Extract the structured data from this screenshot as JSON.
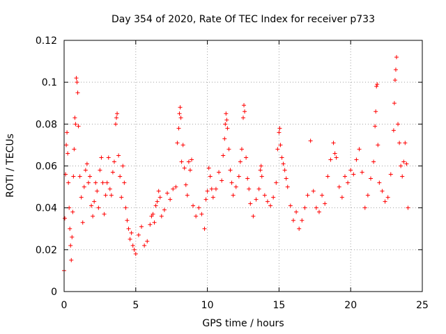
{
  "chart_data": {
    "type": "scatter",
    "title": "Day 354 of 2020, Rate Of TEC Index for receiver p733",
    "xlabel": "GPS time / hours",
    "ylabel": "ROTI / TECUs",
    "xlim": [
      0,
      25
    ],
    "ylim": [
      0,
      0.12
    ],
    "x_ticks": [
      0,
      5,
      10,
      15,
      20,
      25
    ],
    "y_ticks": [
      0,
      0.02,
      0.04,
      0.06,
      0.08,
      0.1,
      0.12
    ],
    "x_tick_labels": [
      "0",
      "5",
      "10",
      "15",
      "20",
      "25"
    ],
    "y_tick_labels": [
      "0",
      "0.02",
      "0.04",
      "0.06",
      "0.08",
      "0.1",
      "0.12"
    ],
    "grid": true,
    "marker": "plus",
    "color": "#ff0000",
    "series": [
      {
        "points": [
          [
            0.0,
            0.01
          ],
          [
            0.05,
            0.035
          ],
          [
            0.1,
            0.056
          ],
          [
            0.15,
            0.07
          ],
          [
            0.2,
            0.076
          ],
          [
            0.25,
            0.066
          ],
          [
            0.3,
            0.052
          ],
          [
            0.35,
            0.04
          ],
          [
            0.4,
            0.03
          ],
          [
            0.45,
            0.022
          ],
          [
            0.5,
            0.015
          ],
          [
            0.55,
            0.026
          ],
          [
            0.6,
            0.038
          ],
          [
            0.65,
            0.055
          ],
          [
            0.7,
            0.068
          ],
          [
            0.75,
            0.083
          ],
          [
            0.8,
            0.08
          ],
          [
            0.85,
            0.102
          ],
          [
            0.9,
            0.1
          ],
          [
            0.95,
            0.095
          ],
          [
            1.0,
            0.079
          ],
          [
            1.1,
            0.055
          ],
          [
            1.2,
            0.045
          ],
          [
            1.3,
            0.033
          ],
          [
            1.4,
            0.05
          ],
          [
            1.5,
            0.058
          ],
          [
            1.6,
            0.061
          ],
          [
            1.7,
            0.052
          ],
          [
            1.8,
            0.055
          ],
          [
            1.9,
            0.041
          ],
          [
            2.0,
            0.036
          ],
          [
            2.1,
            0.043
          ],
          [
            2.2,
            0.052
          ],
          [
            2.3,
            0.048
          ],
          [
            2.4,
            0.04
          ],
          [
            2.5,
            0.058
          ],
          [
            2.6,
            0.064
          ],
          [
            2.7,
            0.052
          ],
          [
            2.8,
            0.037
          ],
          [
            2.9,
            0.046
          ],
          [
            3.0,
            0.052
          ],
          [
            3.1,
            0.064
          ],
          [
            3.2,
            0.049
          ],
          [
            3.3,
            0.046
          ],
          [
            3.4,
            0.057
          ],
          [
            3.5,
            0.062
          ],
          [
            3.6,
            0.08
          ],
          [
            3.65,
            0.083
          ],
          [
            3.7,
            0.085
          ],
          [
            3.8,
            0.065
          ],
          [
            3.9,
            0.055
          ],
          [
            4.0,
            0.045
          ],
          [
            4.1,
            0.06
          ],
          [
            4.2,
            0.052
          ],
          [
            4.3,
            0.04
          ],
          [
            4.4,
            0.034
          ],
          [
            4.5,
            0.03
          ],
          [
            4.6,
            0.025
          ],
          [
            4.7,
            0.028
          ],
          [
            4.8,
            0.022
          ],
          [
            4.9,
            0.02
          ],
          [
            5.0,
            0.018
          ],
          [
            5.2,
            0.027
          ],
          [
            5.4,
            0.031
          ],
          [
            5.6,
            0.022
          ],
          [
            5.8,
            0.024
          ],
          [
            6.0,
            0.032
          ],
          [
            6.1,
            0.036
          ],
          [
            6.2,
            0.037
          ],
          [
            6.3,
            0.033
          ],
          [
            6.4,
            0.041
          ],
          [
            6.5,
            0.043
          ],
          [
            6.6,
            0.048
          ],
          [
            6.7,
            0.045
          ],
          [
            6.8,
            0.036
          ],
          [
            7.0,
            0.039
          ],
          [
            7.2,
            0.047
          ],
          [
            7.4,
            0.044
          ],
          [
            7.6,
            0.049
          ],
          [
            7.8,
            0.05
          ],
          [
            7.9,
            0.071
          ],
          [
            8.0,
            0.078
          ],
          [
            8.05,
            0.085
          ],
          [
            8.1,
            0.088
          ],
          [
            8.15,
            0.083
          ],
          [
            8.2,
            0.062
          ],
          [
            8.3,
            0.07
          ],
          [
            8.4,
            0.059
          ],
          [
            8.5,
            0.051
          ],
          [
            8.6,
            0.046
          ],
          [
            8.7,
            0.062
          ],
          [
            8.8,
            0.058
          ],
          [
            8.9,
            0.063
          ],
          [
            9.0,
            0.041
          ],
          [
            9.2,
            0.036
          ],
          [
            9.4,
            0.04
          ],
          [
            9.6,
            0.037
          ],
          [
            9.8,
            0.03
          ],
          [
            9.9,
            0.044
          ],
          [
            10.0,
            0.048
          ],
          [
            10.1,
            0.059
          ],
          [
            10.2,
            0.055
          ],
          [
            10.3,
            0.049
          ],
          [
            10.4,
            0.045
          ],
          [
            10.6,
            0.049
          ],
          [
            10.8,
            0.057
          ],
          [
            11.0,
            0.053
          ],
          [
            11.1,
            0.065
          ],
          [
            11.2,
            0.073
          ],
          [
            11.25,
            0.08
          ],
          [
            11.3,
            0.085
          ],
          [
            11.35,
            0.082
          ],
          [
            11.4,
            0.078
          ],
          [
            11.5,
            0.068
          ],
          [
            11.6,
            0.058
          ],
          [
            11.7,
            0.052
          ],
          [
            11.8,
            0.046
          ],
          [
            12.0,
            0.05
          ],
          [
            12.2,
            0.055
          ],
          [
            12.3,
            0.062
          ],
          [
            12.4,
            0.068
          ],
          [
            12.5,
            0.083
          ],
          [
            12.55,
            0.089
          ],
          [
            12.6,
            0.086
          ],
          [
            12.7,
            0.064
          ],
          [
            12.8,
            0.054
          ],
          [
            12.9,
            0.049
          ],
          [
            13.0,
            0.042
          ],
          [
            13.2,
            0.036
          ],
          [
            13.4,
            0.044
          ],
          [
            13.6,
            0.049
          ],
          [
            13.7,
            0.058
          ],
          [
            13.75,
            0.06
          ],
          [
            13.8,
            0.055
          ],
          [
            14.0,
            0.046
          ],
          [
            14.2,
            0.043
          ],
          [
            14.4,
            0.041
          ],
          [
            14.6,
            0.045
          ],
          [
            14.8,
            0.052
          ],
          [
            14.9,
            0.068
          ],
          [
            15.0,
            0.076
          ],
          [
            15.05,
            0.078
          ],
          [
            15.1,
            0.07
          ],
          [
            15.2,
            0.064
          ],
          [
            15.3,
            0.061
          ],
          [
            15.4,
            0.058
          ],
          [
            15.5,
            0.054
          ],
          [
            15.6,
            0.05
          ],
          [
            15.8,
            0.041
          ],
          [
            16.0,
            0.034
          ],
          [
            16.2,
            0.038
          ],
          [
            16.4,
            0.03
          ],
          [
            16.6,
            0.034
          ],
          [
            16.8,
            0.04
          ],
          [
            17.0,
            0.046
          ],
          [
            17.2,
            0.072
          ],
          [
            17.4,
            0.048
          ],
          [
            17.6,
            0.04
          ],
          [
            17.8,
            0.038
          ],
          [
            18.0,
            0.046
          ],
          [
            18.2,
            0.042
          ],
          [
            18.4,
            0.055
          ],
          [
            18.6,
            0.063
          ],
          [
            18.8,
            0.071
          ],
          [
            18.9,
            0.066
          ],
          [
            19.0,
            0.064
          ],
          [
            19.2,
            0.05
          ],
          [
            19.4,
            0.045
          ],
          [
            19.6,
            0.055
          ],
          [
            19.8,
            0.052
          ],
          [
            20.0,
            0.058
          ],
          [
            20.2,
            0.056
          ],
          [
            20.4,
            0.063
          ],
          [
            20.6,
            0.068
          ],
          [
            20.8,
            0.057
          ],
          [
            21.0,
            0.04
          ],
          [
            21.2,
            0.046
          ],
          [
            21.4,
            0.054
          ],
          [
            21.6,
            0.062
          ],
          [
            21.7,
            0.079
          ],
          [
            21.75,
            0.086
          ],
          [
            21.8,
            0.098
          ],
          [
            21.85,
            0.099
          ],
          [
            21.9,
            0.07
          ],
          [
            22.0,
            0.052
          ],
          [
            22.2,
            0.048
          ],
          [
            22.4,
            0.043
          ],
          [
            22.6,
            0.045
          ],
          [
            22.8,
            0.056
          ],
          [
            23.0,
            0.077
          ],
          [
            23.05,
            0.09
          ],
          [
            23.1,
            0.101
          ],
          [
            23.15,
            0.106
          ],
          [
            23.2,
            0.112
          ],
          [
            23.3,
            0.08
          ],
          [
            23.4,
            0.071
          ],
          [
            23.5,
            0.06
          ],
          [
            23.6,
            0.055
          ],
          [
            23.7,
            0.062
          ],
          [
            23.8,
            0.071
          ],
          [
            23.9,
            0.061
          ],
          [
            24.0,
            0.04
          ]
        ]
      }
    ]
  }
}
